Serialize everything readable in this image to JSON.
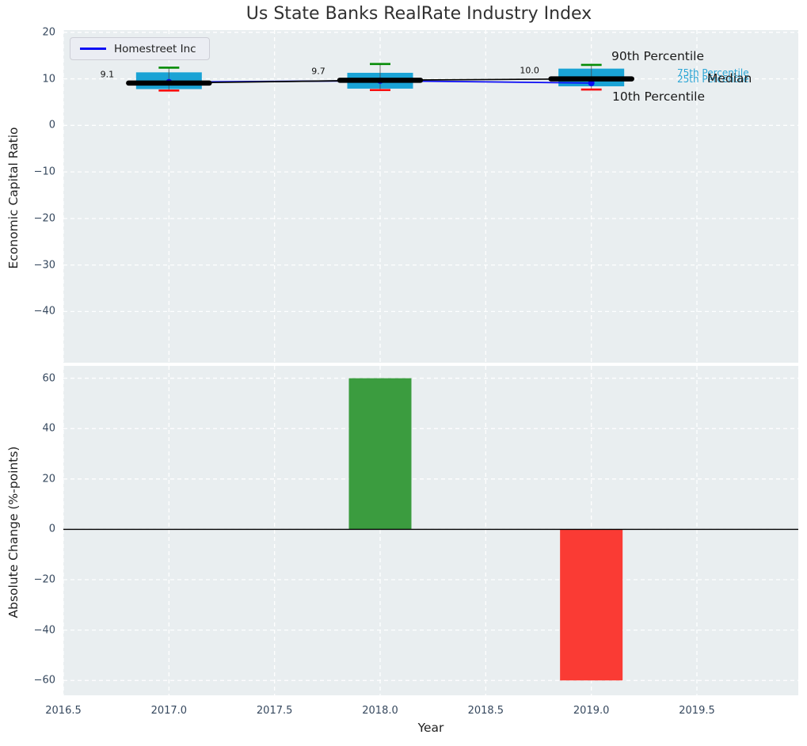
{
  "title": "Us State Banks RealRate Industry Index",
  "colors": {
    "plot_bg": "#e9eef0",
    "grid": "#ffffff",
    "box_fill": "#1aa3d5",
    "whisker": "#4a4a4a",
    "p90_cap": "#068c06",
    "p10_cap": "#f70f0f",
    "median_line": "#000000",
    "homestreet_line": "#0b0bf5",
    "bar_positive": "#3b9c3f",
    "bar_negative": "#fa3b34",
    "zero_line": "#000000",
    "tick_text": "#36485e",
    "annotation_black": "#1a1a1a",
    "annotation_cyan": "#2aa5d5"
  },
  "chart_data": [
    {
      "type": "box",
      "title": "Us State Banks RealRate Industry Index",
      "ylabel": "Economic Capital Ratio",
      "grid": true,
      "legend_position": "upper left",
      "ylim": [
        -51.0,
        20.48
      ],
      "yticks": [
        20,
        10,
        0,
        -10,
        -20,
        -30,
        -40
      ],
      "boxes": [
        {
          "year": 2017,
          "median": 9.1,
          "q1": 7.8,
          "q3": 11.4,
          "p10": 7.5,
          "p90": 12.4
        },
        {
          "year": 2018,
          "median": 9.7,
          "q1": 7.9,
          "q3": 11.3,
          "p10": 7.6,
          "p90": 13.2
        },
        {
          "year": 2019,
          "median": 10.0,
          "q1": 8.4,
          "q3": 12.2,
          "p10": 7.7,
          "p90": 13.0
        }
      ],
      "median_annotations": [
        "9.1",
        "9.7",
        "10.0"
      ],
      "series": [
        {
          "name": "Homestreet Inc",
          "x": [
            2017,
            2018,
            2019
          ],
          "y": [
            9.3,
            9.6,
            9.1
          ]
        }
      ],
      "percentile_labels": [
        "90th Percentile",
        "75th Percentile",
        "25th Percentile",
        "Median",
        "10th Percentile"
      ]
    },
    {
      "type": "bar",
      "ylabel": "Absolute Change (%-points)",
      "xlabel": "Year",
      "grid": true,
      "ylim": [
        -65.9,
        64.9
      ],
      "yticks": [
        60,
        40,
        20,
        0,
        -20,
        -40,
        -60
      ],
      "xlim": [
        2016.5,
        2019.98
      ],
      "xticks": [
        {
          "v": 2016.5,
          "label": "2016.5"
        },
        {
          "v": 2017.0,
          "label": "2017.0"
        },
        {
          "v": 2017.5,
          "label": "2017.5"
        },
        {
          "v": 2018.0,
          "label": "2018.0"
        },
        {
          "v": 2018.5,
          "label": "2018.5"
        },
        {
          "v": 2019.0,
          "label": "2019.0"
        },
        {
          "v": 2019.5,
          "label": "2019.5"
        }
      ],
      "bars": [
        {
          "year": 2018,
          "value": 60.0
        },
        {
          "year": 2019,
          "value": -60.0
        }
      ]
    }
  ]
}
